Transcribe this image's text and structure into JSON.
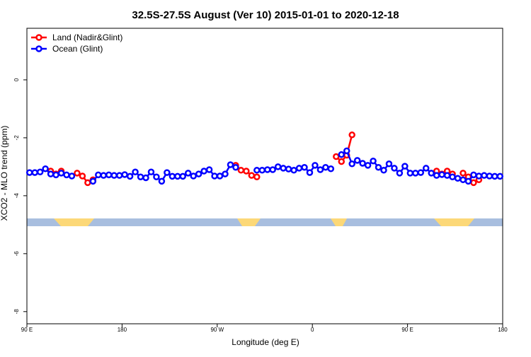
{
  "chart_data": {
    "type": "line",
    "title": "32.5S-27.5S August (Ver 10)   2015-01-01 to 2020-12-18",
    "x_label": "Longitude (deg E)",
    "y_label": "XCO2 - MLO trend (ppm)",
    "x": [
      92.5,
      97.5,
      102.5,
      107.5,
      112.5,
      117.5,
      122.5,
      127.5,
      132.5,
      137.5,
      142.5,
      147.5,
      152.5,
      157.5,
      162.5,
      167.5,
      172.5,
      177.5,
      182.5,
      187.5,
      192.5,
      197.5,
      202.5,
      207.5,
      212.5,
      217.5,
      222.5,
      227.5,
      232.5,
      237.5,
      242.5,
      247.5,
      252.5,
      257.5,
      262.5,
      267.5,
      272.5,
      277.5,
      282.5,
      287.5,
      292.5,
      297.5,
      302.5,
      307.5,
      312.5,
      317.5,
      322.5,
      327.5,
      332.5,
      337.5,
      342.5,
      347.5,
      352.5,
      357.5,
      362.5,
      367.5,
      372.5,
      377.5,
      382.5,
      387.5,
      392.5,
      397.5,
      402.5,
      407.5,
      412.5,
      417.5,
      422.5,
      427.5,
      432.5,
      437.5,
      442.5,
      447.5,
      452.5,
      457.5,
      462.5,
      467.5,
      472.5,
      477.5,
      482.5,
      487.5,
      492.5,
      497.5,
      502.5,
      507.5,
      512.5,
      517.5,
      522.5,
      527.5,
      532.5,
      537.5
    ],
    "series": [
      {
        "name": "Land (Nadir&Glint)",
        "color": "#ff0000",
        "values": [
          null,
          null,
          null,
          null,
          -3.15,
          -3.25,
          -3.15,
          null,
          null,
          -3.22,
          -3.32,
          -3.55,
          -3.45,
          null,
          null,
          null,
          null,
          null,
          null,
          null,
          null,
          null,
          null,
          null,
          null,
          null,
          null,
          null,
          null,
          null,
          null,
          null,
          null,
          null,
          null,
          null,
          null,
          null,
          null,
          -2.95,
          -3.12,
          -3.15,
          -3.3,
          -3.35,
          null,
          null,
          null,
          null,
          null,
          null,
          null,
          null,
          null,
          null,
          null,
          null,
          null,
          null,
          -2.65,
          -2.82,
          -2.6,
          -1.9,
          null,
          null,
          null,
          null,
          null,
          null,
          null,
          null,
          null,
          null,
          null,
          null,
          null,
          null,
          null,
          -3.15,
          -3.25,
          -3.15,
          -3.25,
          null,
          -3.22,
          -3.35,
          -3.55,
          -3.45,
          null,
          null,
          null,
          null
        ]
      },
      {
        "name": "Ocean (Glint)",
        "color": "#0000ff",
        "values": [
          -3.2,
          -3.2,
          -3.18,
          -3.07,
          -3.25,
          -3.28,
          -3.22,
          -3.28,
          -3.32,
          null,
          null,
          null,
          -3.5,
          -3.28,
          -3.3,
          -3.28,
          -3.3,
          -3.3,
          -3.27,
          -3.33,
          -3.18,
          -3.35,
          -3.38,
          -3.18,
          -3.35,
          -3.5,
          -3.2,
          -3.33,
          -3.33,
          -3.33,
          -3.22,
          -3.32,
          -3.25,
          -3.15,
          -3.1,
          -3.32,
          -3.32,
          -3.25,
          -2.93,
          -3.02,
          null,
          null,
          null,
          -3.12,
          -3.12,
          -3.1,
          -3.1,
          -3.0,
          -3.05,
          -3.08,
          -3.12,
          -3.05,
          -3.02,
          -3.2,
          -2.95,
          -3.1,
          -3.02,
          -3.07,
          null,
          -2.58,
          -2.45,
          -2.9,
          -2.78,
          -2.88,
          -2.95,
          -2.8,
          -3.02,
          -3.12,
          -2.9,
          -3.05,
          -3.22,
          -2.98,
          -3.22,
          -3.22,
          -3.2,
          -3.05,
          -3.22,
          -3.3,
          -3.27,
          -3.3,
          -3.35,
          -3.4,
          -3.45,
          -3.5,
          -3.28,
          -3.32,
          -3.3,
          -3.32,
          -3.33,
          -3.33
        ]
      }
    ],
    "xlim": [
      90,
      540
    ],
    "xticks": [
      {
        "value": 90,
        "label": "90 E"
      },
      180,
      {
        "value": 270,
        "label": "90 W"
      },
      {
        "value": 360,
        "label": "0"
      },
      {
        "value": 450,
        "label": "90 E"
      },
      {
        "value": 540,
        "label": "180"
      }
    ],
    "ylim": [
      -8.42,
      1.78
    ],
    "yticks": [
      -8,
      -6,
      -4,
      -2,
      0
    ],
    "legend": "top-left"
  }
}
